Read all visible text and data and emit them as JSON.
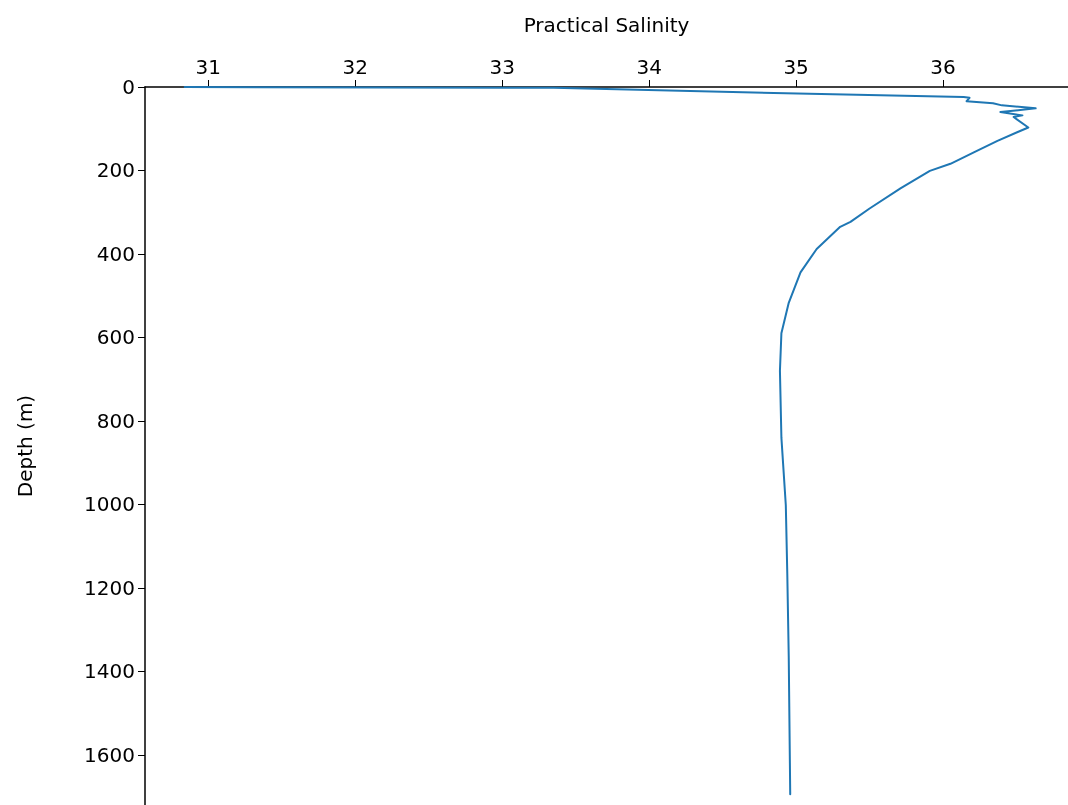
{
  "chart_data": {
    "type": "line",
    "xlabel": "Practical Salinity",
    "ylabel": "Depth (m)",
    "xlim": [
      30.57,
      36.85
    ],
    "xticks": [
      31,
      32,
      33,
      34,
      35,
      36
    ],
    "ylim": [
      1720,
      0
    ],
    "yticks": [
      0,
      200,
      400,
      600,
      800,
      1000,
      1200,
      1400,
      1600
    ],
    "grid": false,
    "marker": "none",
    "line_style": "solid",
    "series": [
      {
        "color": "#1f77b4",
        "x": [
          30.84,
          33.35,
          35.17,
          36.14,
          36.18,
          36.16,
          36.34,
          36.4,
          36.63,
          36.39,
          36.54,
          36.48,
          36.58,
          36.5,
          36.37,
          36.23,
          36.05,
          35.91,
          35.71,
          35.5,
          35.37,
          35.3,
          35.14,
          35.03,
          34.95,
          34.9,
          34.89,
          34.9,
          34.93,
          34.94,
          34.95,
          34.96
        ],
        "values": [
          0,
          2,
          17,
          24,
          26,
          34,
          39,
          44,
          51,
          60,
          68,
          72,
          97,
          109,
          129,
          153,
          184,
          201,
          243,
          291,
          323,
          335,
          388,
          444,
          517,
          590,
          680,
          840,
          1002,
          1165,
          1366,
          1694
        ]
      }
    ]
  }
}
